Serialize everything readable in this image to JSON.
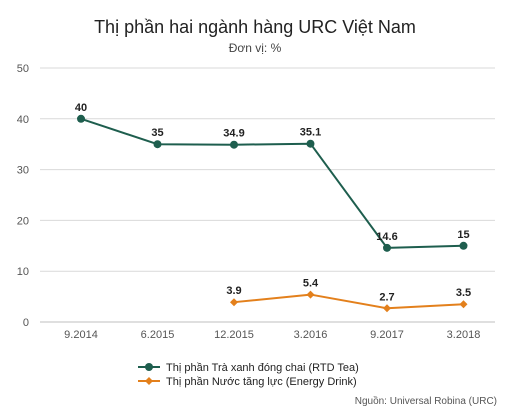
{
  "chart_data": {
    "type": "line",
    "title": "Thị phần hai ngành hàng URC Việt Nam",
    "subtitle": "Đơn vị: %",
    "categories": [
      "9.2014",
      "6.2015",
      "12.2015",
      "3.2016",
      "9.2017",
      "3.2018"
    ],
    "ylim": [
      0,
      50
    ],
    "yticks": [
      0,
      10,
      20,
      30,
      40,
      50
    ],
    "grid": true,
    "legend_position": "bottom-left",
    "series": [
      {
        "name": "Thị phần Trà xanh đóng chai (RTD Tea)",
        "values": [
          40,
          35,
          34.9,
          35.1,
          14.6,
          15
        ],
        "labels": [
          "40",
          "35",
          "34.9",
          "35.1",
          "14.6",
          "15"
        ],
        "color": "#1e5e4e",
        "marker": "circle"
      },
      {
        "name": "Thị phần Nước tăng lực (Energy Drink)",
        "values": [
          null,
          null,
          3.9,
          5.4,
          2.7,
          3.5
        ],
        "labels": [
          null,
          null,
          "3.9",
          "5.4",
          "2.7",
          "3.5"
        ],
        "color": "#e3801c",
        "marker": "diamond"
      }
    ],
    "source": "Nguồn: Universal Robina (URC)"
  }
}
